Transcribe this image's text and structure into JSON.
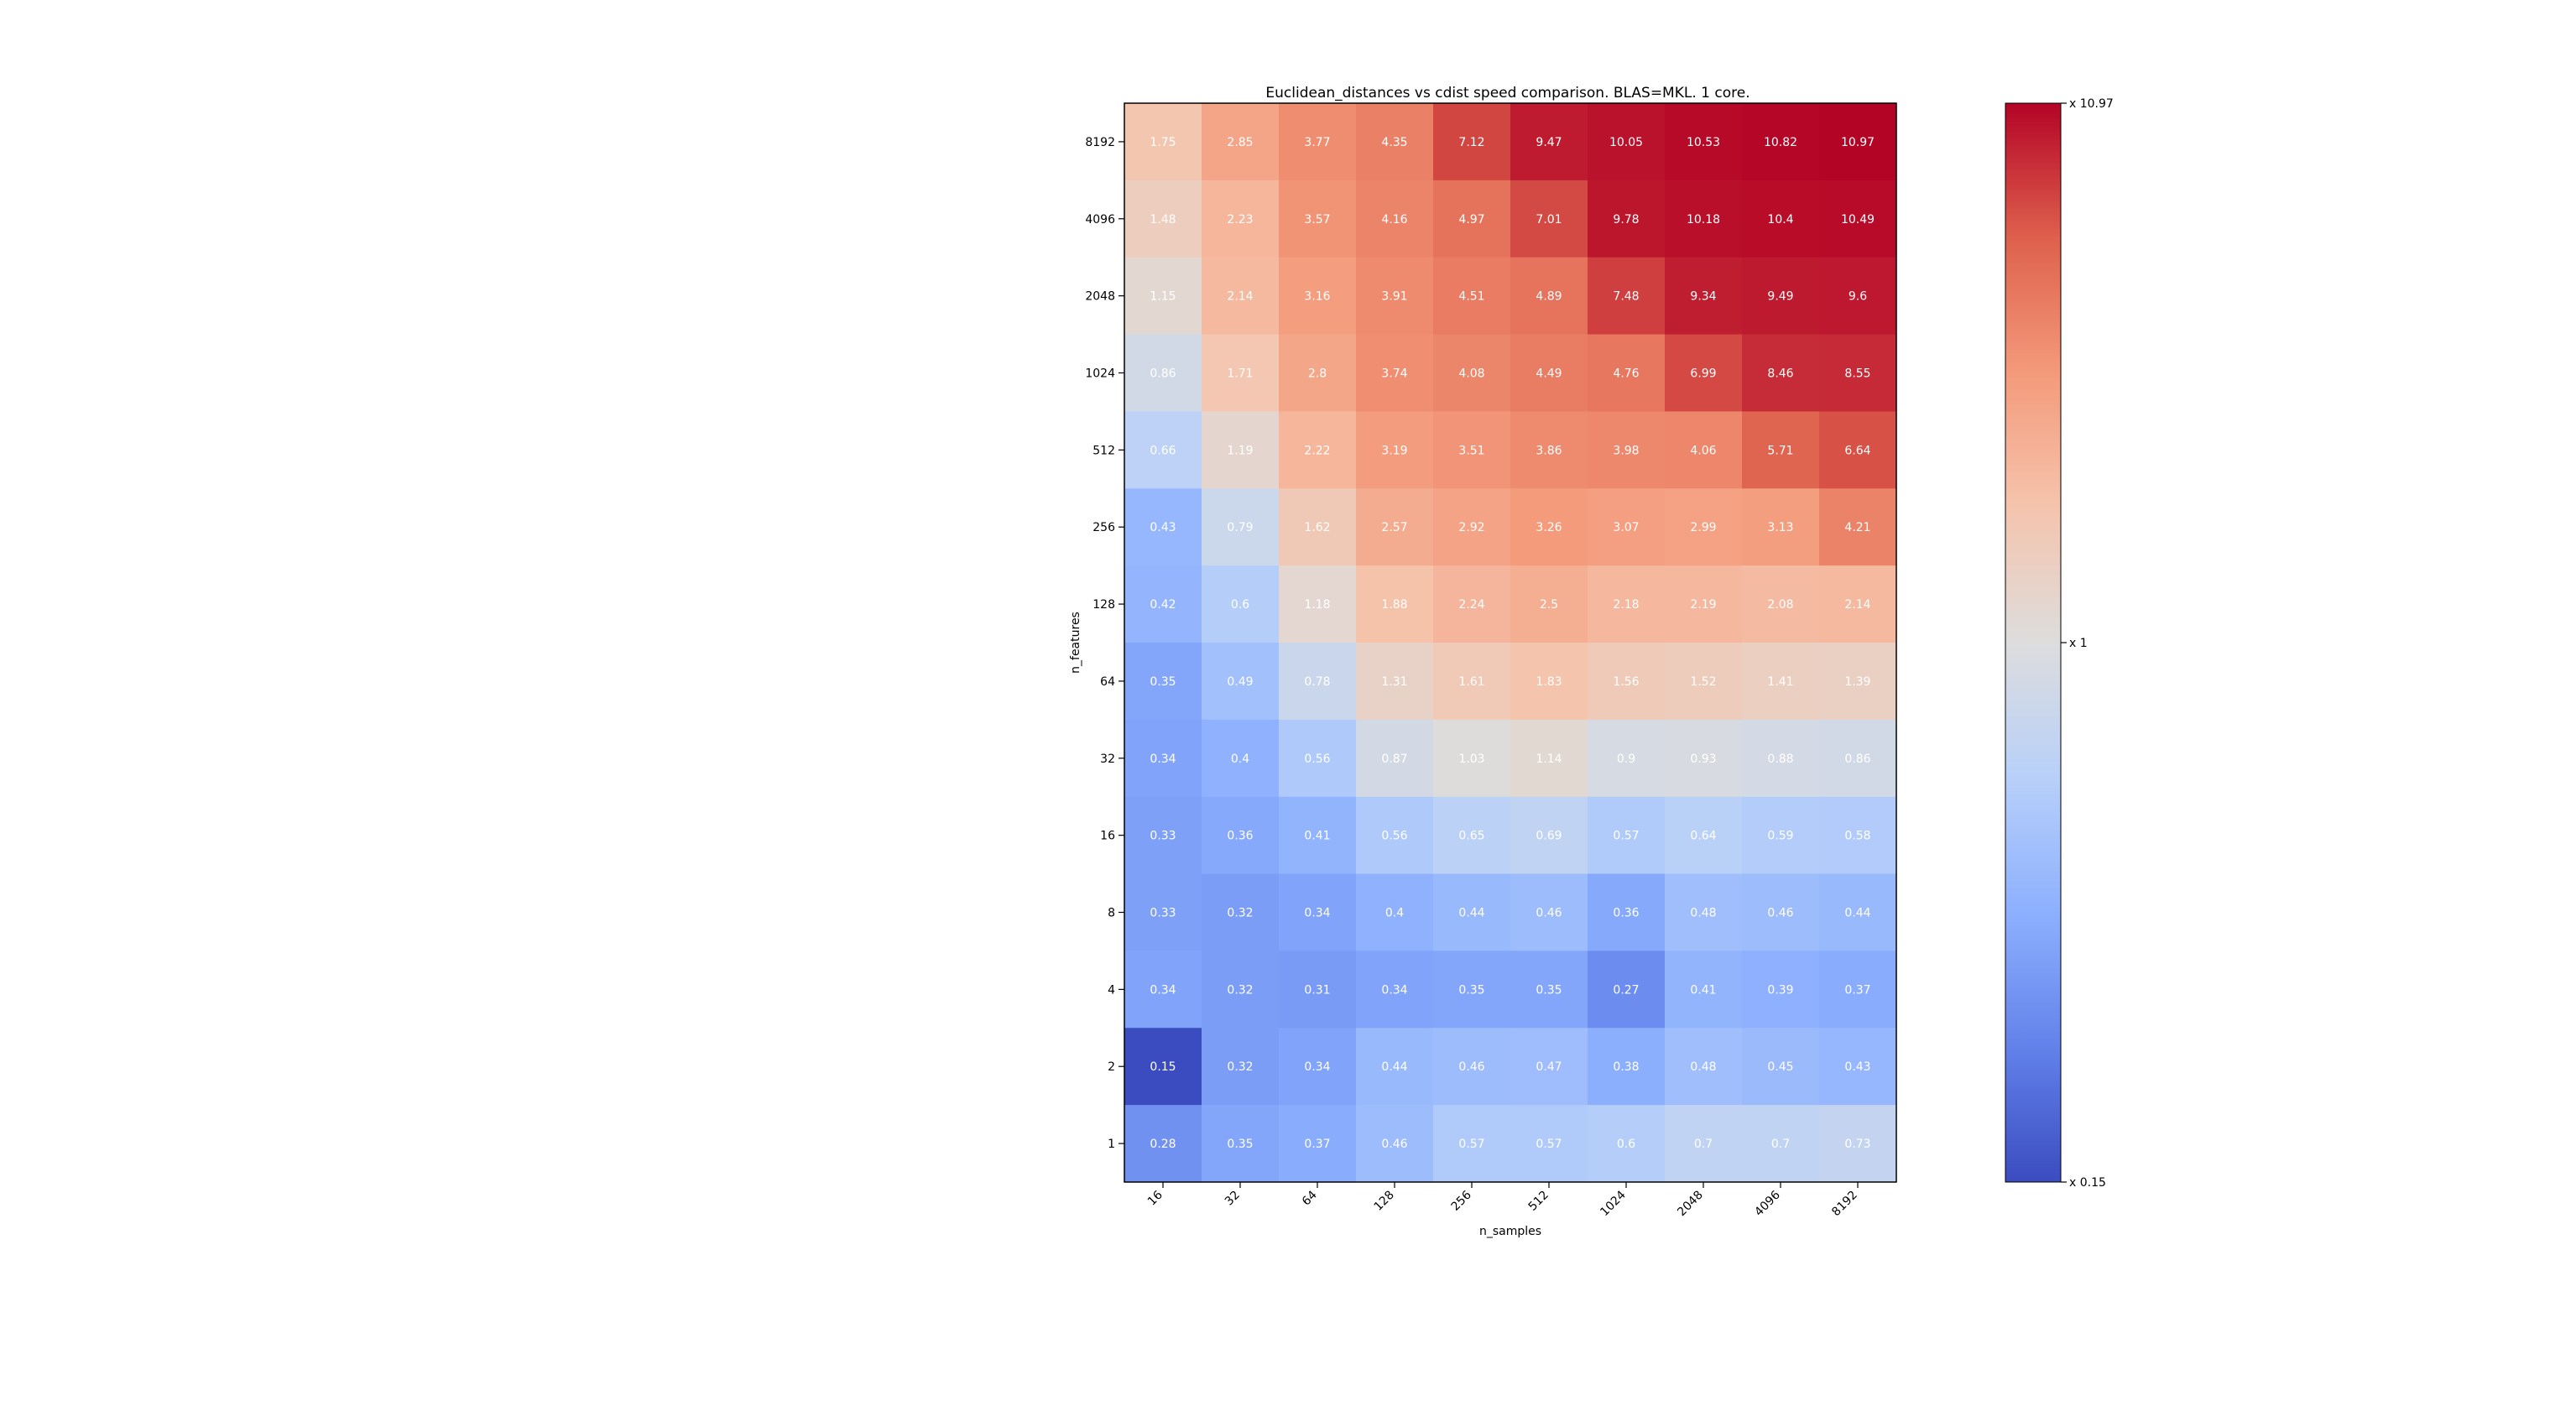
{
  "chart_data": {
    "type": "heatmap",
    "title": "Euclidean_distances vs cdist speed comparison. BLAS=MKL. 1 core.",
    "xlabel": "n_samples",
    "ylabel": "n_features",
    "x_categories": [
      "16",
      "32",
      "64",
      "128",
      "256",
      "512",
      "1024",
      "2048",
      "4096",
      "8192"
    ],
    "y_categories": [
      "8192",
      "4096",
      "2048",
      "1024",
      "512",
      "256",
      "128",
      "64",
      "32",
      "16",
      "8",
      "4",
      "2",
      "1"
    ],
    "values": [
      [
        1.75,
        2.85,
        3.77,
        4.35,
        7.12,
        9.47,
        10.05,
        10.53,
        10.82,
        10.97
      ],
      [
        1.48,
        2.23,
        3.57,
        4.16,
        4.97,
        7.01,
        9.78,
        10.18,
        10.4,
        10.49
      ],
      [
        1.15,
        2.14,
        3.16,
        3.91,
        4.51,
        4.89,
        7.48,
        9.34,
        9.49,
        9.6
      ],
      [
        0.86,
        1.71,
        2.8,
        3.74,
        4.08,
        4.49,
        4.76,
        6.99,
        8.46,
        8.55
      ],
      [
        0.66,
        1.19,
        2.22,
        3.19,
        3.51,
        3.86,
        3.98,
        4.06,
        5.71,
        6.64
      ],
      [
        0.43,
        0.79,
        1.62,
        2.57,
        2.92,
        3.26,
        3.07,
        2.99,
        3.13,
        4.21
      ],
      [
        0.42,
        0.6,
        1.18,
        1.88,
        2.24,
        2.5,
        2.18,
        2.19,
        2.08,
        2.14
      ],
      [
        0.35,
        0.49,
        0.78,
        1.31,
        1.61,
        1.83,
        1.56,
        1.52,
        1.41,
        1.39
      ],
      [
        0.34,
        0.4,
        0.56,
        0.87,
        1.03,
        1.14,
        0.9,
        0.93,
        0.88,
        0.86
      ],
      [
        0.33,
        0.36,
        0.41,
        0.56,
        0.65,
        0.69,
        0.57,
        0.64,
        0.59,
        0.58
      ],
      [
        0.33,
        0.32,
        0.34,
        0.4,
        0.44,
        0.46,
        0.36,
        0.48,
        0.46,
        0.44
      ],
      [
        0.34,
        0.32,
        0.31,
        0.34,
        0.35,
        0.35,
        0.27,
        0.41,
        0.39,
        0.37
      ],
      [
        0.15,
        0.32,
        0.34,
        0.44,
        0.46,
        0.47,
        0.38,
        0.48,
        0.45,
        0.43
      ],
      [
        0.28,
        0.35,
        0.37,
        0.46,
        0.57,
        0.57,
        0.6,
        0.7,
        0.7,
        0.73
      ]
    ],
    "colormap": "coolwarm",
    "color_scale": "log",
    "vmin": 0.15,
    "vmax": 10.97,
    "colorbar": {
      "ticks": [
        10.97,
        1,
        0.15
      ],
      "tick_labels": [
        "x 10.97",
        "x 1",
        "x 0.15"
      ]
    },
    "grid": false,
    "legend": "none"
  }
}
